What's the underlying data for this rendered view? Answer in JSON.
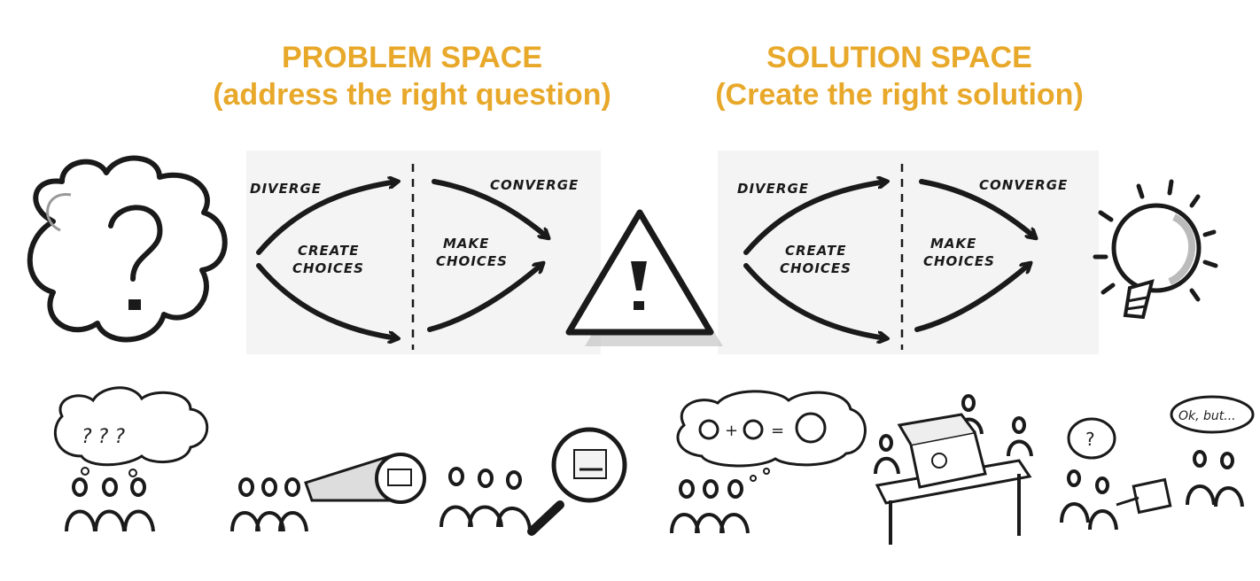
{
  "problem": {
    "title": "PROBLEM SPACE",
    "subtitle": "(address the right question)",
    "diverge": "DIVERGE",
    "converge": "CONVERGE",
    "create_1": "CREATE",
    "create_2": "CHOICES",
    "make_1": "MAKE",
    "make_2": "CHOICES"
  },
  "solution": {
    "title": "SOLUTION SPACE",
    "subtitle": "(Create the right solution)",
    "diverge": "DIVERGE",
    "converge": "CONVERGE",
    "create_1": "CREATE",
    "create_2": "CHOICES",
    "make_1": "MAKE",
    "make_2": "CHOICES"
  },
  "sketches": {
    "question_marks": "? ? ?",
    "speech_bubble": "Ok, but...",
    "question_bubble": "?"
  },
  "colors": {
    "accent": "#E8A82A",
    "ink": "#1a1a1a",
    "panel": "#f4f4f4"
  }
}
